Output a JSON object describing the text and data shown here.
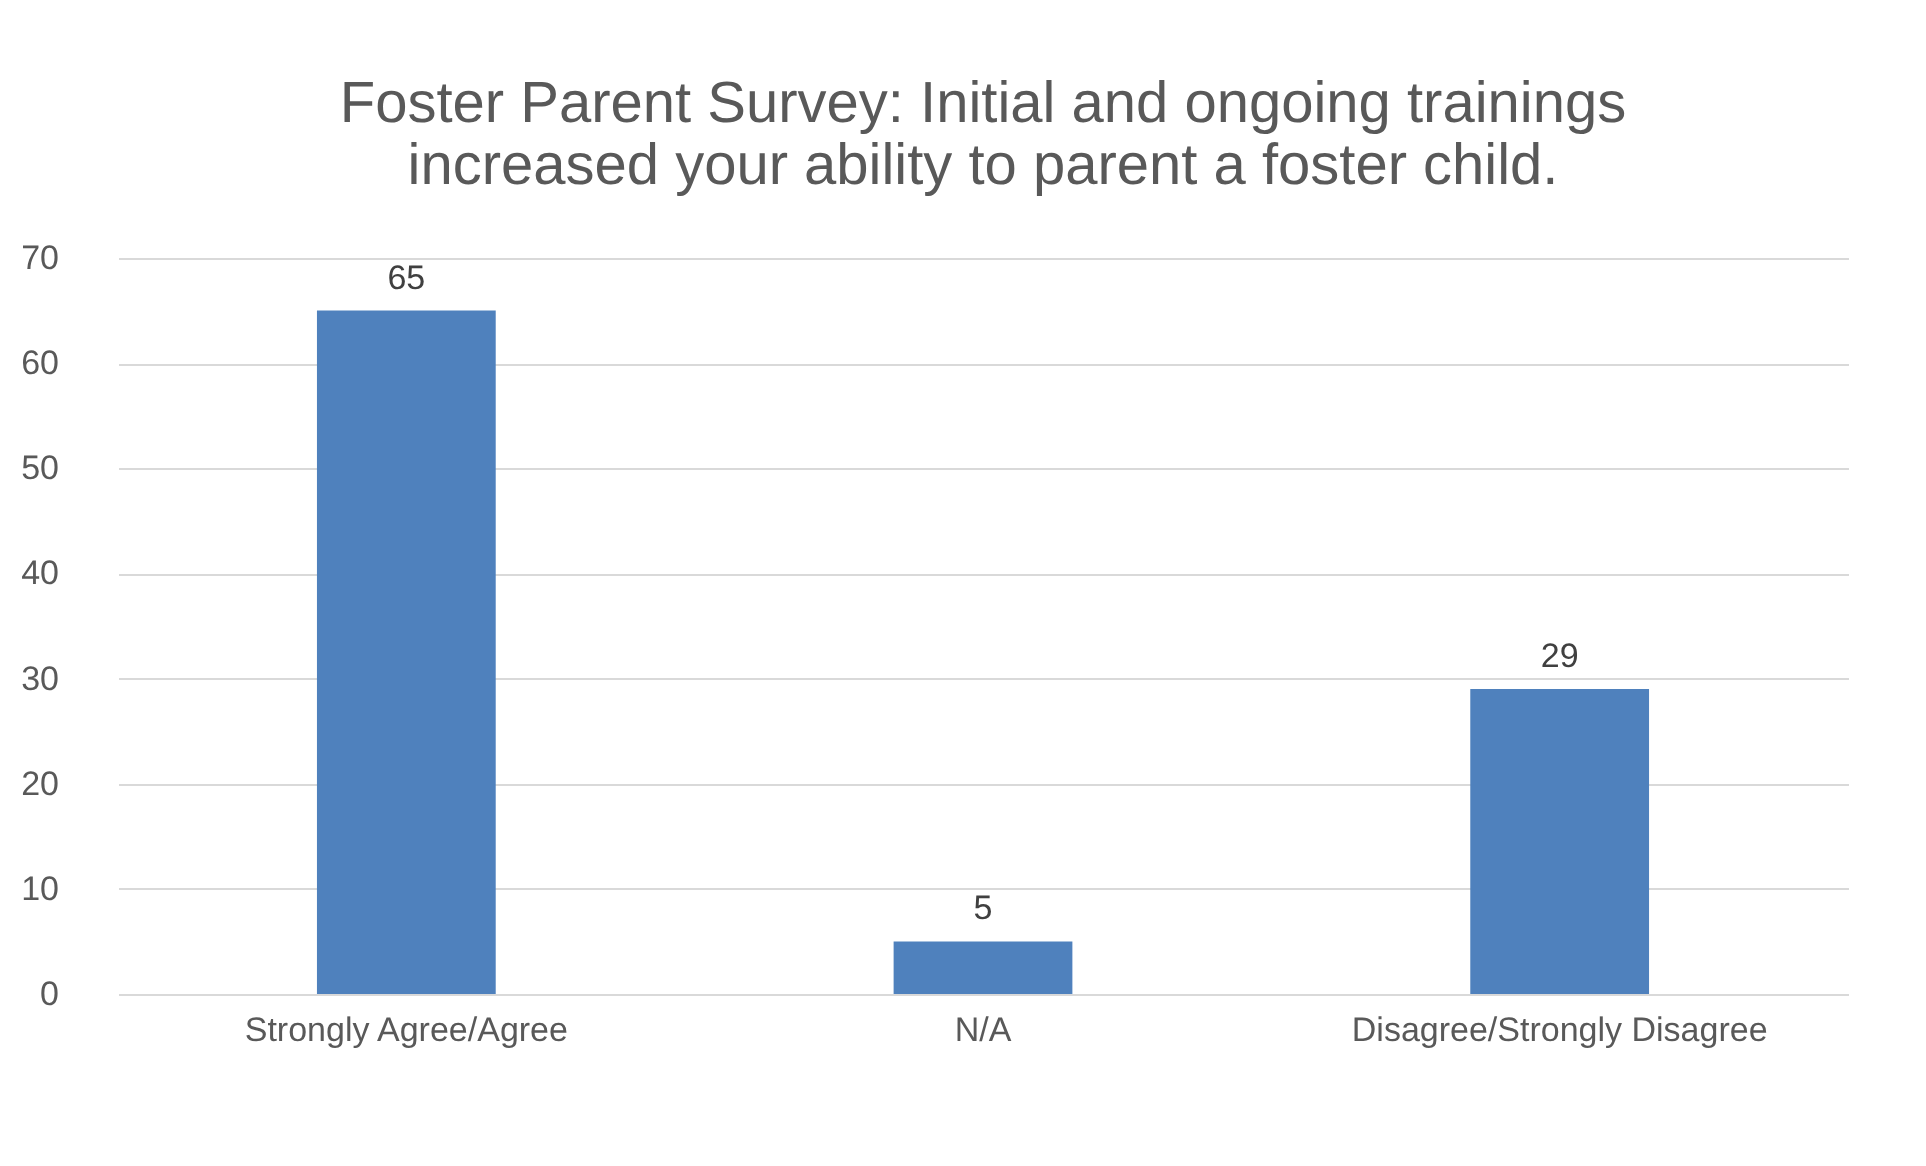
{
  "chart_data": {
    "type": "bar",
    "title": "Foster Parent Survey: Initial and ongoing trainings increased your ability to parent a foster child.",
    "categories": [
      "Strongly Agree/Agree",
      "N/A",
      "Disagree/Strongly Disagree"
    ],
    "values": [
      65,
      5,
      29
    ],
    "color": "#4f81bd",
    "ylim": [
      0,
      70
    ],
    "yticks": [
      0,
      10,
      20,
      30,
      40,
      50,
      60,
      70
    ],
    "grid": "y",
    "data_labels": true
  }
}
